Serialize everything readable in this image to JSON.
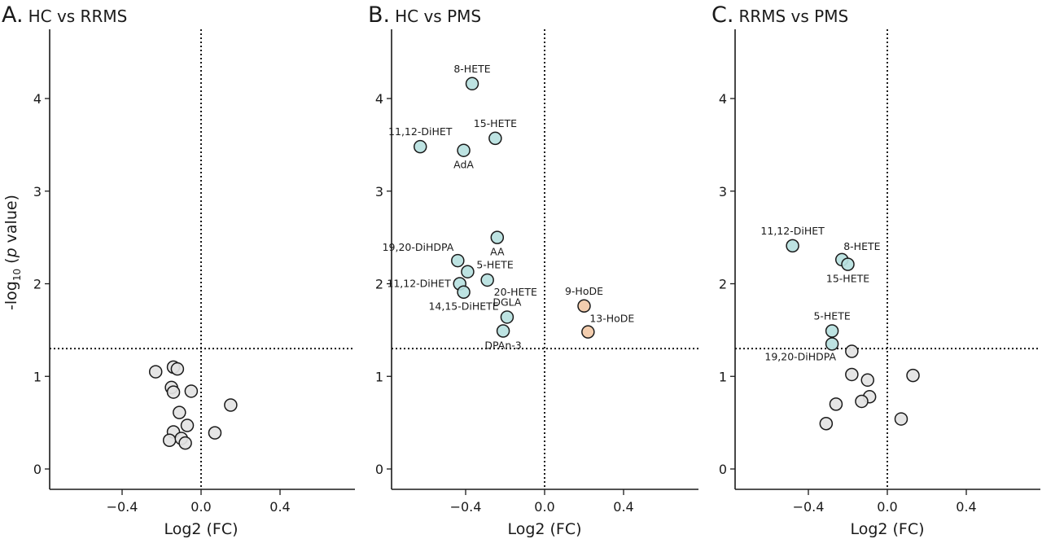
{
  "figure": {
    "ylabel_prefix": "-log",
    "ylabel_sub": "10",
    "ylabel_open": " (",
    "ylabel_italic": "p",
    "ylabel_close": " value)"
  },
  "colors": {
    "significant_decreased": "#b7e1e0",
    "significant_increased": "#f2c9a7",
    "not_significant": "#e3e3e3",
    "marker_stroke": "#1a1a1a"
  },
  "chart_data": [
    {
      "type": "scatter",
      "letter": "A.",
      "title": "HC vs RRMS",
      "xlabel": "Log2 (FC)",
      "ylabel": "-log10 (p value)",
      "xlim": [
        -0.75,
        0.75
      ],
      "ylim": [
        -0.22,
        4.76
      ],
      "xticks": [
        -0.4,
        0.0,
        0.4
      ],
      "xtick_labels": [
        "−0.4",
        "0.0",
        "0.4"
      ],
      "yticks": [
        0,
        1,
        2,
        3,
        4
      ],
      "ytick_labels": [
        "0",
        "1",
        "2",
        "3",
        "4"
      ],
      "threshold_y": 1.3,
      "threshold_x": 0.0,
      "grid": false,
      "points": [
        {
          "x": -0.23,
          "y": 1.05,
          "group": "ns",
          "label": ""
        },
        {
          "x": -0.14,
          "y": 1.1,
          "group": "ns",
          "label": ""
        },
        {
          "x": -0.12,
          "y": 1.08,
          "group": "ns",
          "label": ""
        },
        {
          "x": -0.15,
          "y": 0.88,
          "group": "ns",
          "label": ""
        },
        {
          "x": -0.14,
          "y": 0.83,
          "group": "ns",
          "label": ""
        },
        {
          "x": -0.05,
          "y": 0.84,
          "group": "ns",
          "label": ""
        },
        {
          "x": -0.11,
          "y": 0.61,
          "group": "ns",
          "label": ""
        },
        {
          "x": -0.07,
          "y": 0.47,
          "group": "ns",
          "label": ""
        },
        {
          "x": -0.14,
          "y": 0.4,
          "group": "ns",
          "label": ""
        },
        {
          "x": -0.16,
          "y": 0.31,
          "group": "ns",
          "label": ""
        },
        {
          "x": -0.1,
          "y": 0.33,
          "group": "ns",
          "label": ""
        },
        {
          "x": -0.08,
          "y": 0.28,
          "group": "ns",
          "label": ""
        },
        {
          "x": 0.15,
          "y": 0.69,
          "group": "ns",
          "label": ""
        },
        {
          "x": 0.07,
          "y": 0.39,
          "group": "ns",
          "label": ""
        }
      ]
    },
    {
      "type": "scatter",
      "letter": "B.",
      "title": "HC vs PMS",
      "xlabel": "Log2 (FC)",
      "ylabel": "",
      "xlim": [
        -0.75,
        0.75
      ],
      "ylim": [
        -0.22,
        4.76
      ],
      "xticks": [
        -0.4,
        0.0,
        0.4
      ],
      "xtick_labels": [
        "−0.4",
        "0.0",
        "0.4"
      ],
      "yticks": [
        0,
        1,
        2,
        3,
        4
      ],
      "ytick_labels": [
        "0",
        "1",
        "2",
        "3",
        "4"
      ],
      "threshold_y": 1.3,
      "threshold_x": 0.0,
      "grid": false,
      "points": [
        {
          "x": -0.367,
          "y": 4.16,
          "group": "down",
          "label": "8-HETE",
          "pos": "top"
        },
        {
          "x": -0.63,
          "y": 3.48,
          "group": "down",
          "label": "11,12-DiHET",
          "pos": "top"
        },
        {
          "x": -0.41,
          "y": 3.44,
          "group": "down",
          "label": "AdA",
          "pos": "bottom"
        },
        {
          "x": -0.25,
          "y": 3.57,
          "group": "down",
          "label": "15-HETE",
          "pos": "top"
        },
        {
          "x": -0.24,
          "y": 2.5,
          "group": "down",
          "label": "AA",
          "pos": "bottom"
        },
        {
          "x": -0.44,
          "y": 2.25,
          "group": "down",
          "label": "19,20-DiHDPA",
          "pos": "topleft"
        },
        {
          "x": -0.39,
          "y": 2.13,
          "group": "down",
          "label": "5-HETE",
          "pos": "right"
        },
        {
          "x": -0.43,
          "y": 2.0,
          "group": "down",
          "label": "11,12-DiHET",
          "pos": "left"
        },
        {
          "x": -0.29,
          "y": 2.04,
          "group": "down",
          "label": "20-HETE",
          "pos": "bottomright"
        },
        {
          "x": -0.41,
          "y": 1.91,
          "group": "down",
          "label": "14,15-DiHETE",
          "pos": "bottom"
        },
        {
          "x": -0.19,
          "y": 1.64,
          "group": "down",
          "label": "DGLA",
          "pos": "top"
        },
        {
          "x": -0.21,
          "y": 1.49,
          "group": "down",
          "label": "DPAn-3",
          "pos": "bottom"
        },
        {
          "x": 0.2,
          "y": 1.76,
          "group": "up",
          "label": "9-HoDE",
          "pos": "top"
        },
        {
          "x": 0.22,
          "y": 1.48,
          "group": "up",
          "label": "13-HoDE",
          "pos": "topright"
        }
      ]
    },
    {
      "type": "scatter",
      "letter": "C.",
      "title": "RRMS vs PMS",
      "xlabel": "Log2 (FC)",
      "ylabel": "",
      "xlim": [
        -0.75,
        0.75
      ],
      "ylim": [
        -0.22,
        4.76
      ],
      "xticks": [
        -0.4,
        0.0,
        0.4
      ],
      "xtick_labels": [
        "−0.4",
        "0.0",
        "0.4"
      ],
      "yticks": [
        0,
        1,
        2,
        3,
        4
      ],
      "ytick_labels": [
        "0",
        "1",
        "2",
        "3",
        "4"
      ],
      "threshold_y": 1.3,
      "threshold_x": 0.0,
      "grid": false,
      "points": [
        {
          "x": -0.48,
          "y": 2.41,
          "group": "down",
          "label": "11,12-DiHET",
          "pos": "top"
        },
        {
          "x": -0.23,
          "y": 2.26,
          "group": "down",
          "label": "8-HETE",
          "pos": "topright"
        },
        {
          "x": -0.2,
          "y": 2.21,
          "group": "down",
          "label": "15-HETE",
          "pos": "bottom"
        },
        {
          "x": -0.28,
          "y": 1.49,
          "group": "down",
          "label": "5-HETE",
          "pos": "top"
        },
        {
          "x": -0.28,
          "y": 1.35,
          "group": "down",
          "label": "19,20-DiHDPA",
          "pos": "bottomleft"
        },
        {
          "x": -0.18,
          "y": 1.27,
          "group": "ns",
          "label": ""
        },
        {
          "x": -0.18,
          "y": 1.02,
          "group": "ns",
          "label": ""
        },
        {
          "x": -0.1,
          "y": 0.96,
          "group": "ns",
          "label": ""
        },
        {
          "x": -0.09,
          "y": 0.78,
          "group": "ns",
          "label": ""
        },
        {
          "x": -0.13,
          "y": 0.73,
          "group": "ns",
          "label": ""
        },
        {
          "x": -0.26,
          "y": 0.7,
          "group": "ns",
          "label": ""
        },
        {
          "x": -0.31,
          "y": 0.49,
          "group": "ns",
          "label": ""
        },
        {
          "x": 0.13,
          "y": 1.01,
          "group": "ns",
          "label": ""
        },
        {
          "x": 0.07,
          "y": 0.54,
          "group": "ns",
          "label": ""
        }
      ]
    }
  ]
}
